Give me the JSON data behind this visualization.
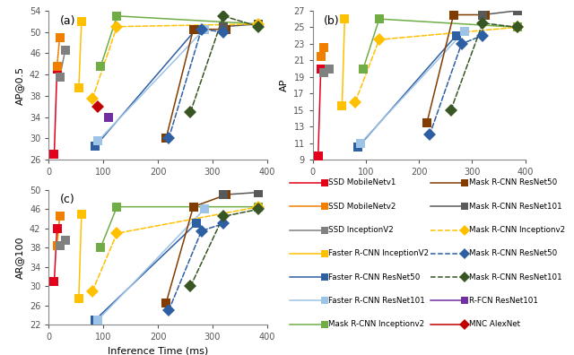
{
  "series": [
    {
      "name": "SSD MobileNetv1",
      "color": "#e2001a",
      "ls": "-",
      "mk": "s",
      "times": [
        10,
        15
      ],
      "ap05": [
        27,
        43
      ],
      "ap": [
        9.5,
        20
      ],
      "ar100": [
        31,
        42
      ]
    },
    {
      "name": "SSD MobileNetv2",
      "color": "#f07f00",
      "ls": "-",
      "mk": "s",
      "times": [
        15,
        20
      ],
      "ap05": [
        43.5,
        49
      ],
      "ap": [
        21.5,
        22.5
      ],
      "ar100": [
        38.5,
        44.5
      ]
    },
    {
      "name": "SSD InceptionV2",
      "color": "#808080",
      "ls": "-",
      "mk": "s",
      "times": [
        20,
        30
      ],
      "ap05": [
        41.5,
        46.5
      ],
      "ap": [
        19.5,
        20.0
      ],
      "ar100": [
        38.5,
        39.5
      ]
    },
    {
      "name": "Faster R-CNN InceptionV2",
      "color": "#ffc000",
      "ls": "-",
      "mk": "s",
      "times": [
        55,
        60
      ],
      "ap05": [
        39.5,
        52.0
      ],
      "ap": [
        15.5,
        26.0
      ],
      "ar100": [
        27.5,
        45.0
      ]
    },
    {
      "name": "Faster R-CNN ResNet50",
      "color": "#2e5fa3",
      "ls": "-",
      "mk": "s",
      "times": [
        85,
        270
      ],
      "ap05": [
        28.5,
        50.5
      ],
      "ap": [
        10.5,
        24.0
      ],
      "ar100": [
        23.0,
        43.0
      ]
    },
    {
      "name": "Faster R-CNN ResNet101",
      "color": "#9dc3e6",
      "ls": "-",
      "mk": "s",
      "times": [
        90,
        285
      ],
      "ap05": [
        29.5,
        50.5
      ],
      "ap": [
        11.0,
        24.5
      ],
      "ar100": [
        23.0,
        46.0
      ]
    },
    {
      "name": "Mask R-CNN Inceptionv2",
      "color": "#70ad47",
      "ls": "-",
      "mk": "s",
      "times": [
        95,
        125,
        385
      ],
      "ap05": [
        43.5,
        53.0,
        51.5
      ],
      "ap": [
        20.0,
        26.0,
        25.0
      ],
      "ar100": [
        38.0,
        46.5,
        46.5
      ]
    },
    {
      "name": "Mask R-CNN ResNet50",
      "color": "#833c00",
      "ls": "-",
      "mk": "s",
      "times": [
        215,
        265,
        325
      ],
      "ap05": [
        30.0,
        50.5,
        50.5
      ],
      "ap": [
        13.5,
        26.5,
        26.5
      ],
      "ar100": [
        26.5,
        46.5,
        49.0
      ]
    },
    {
      "name": "Mask R-CNN ResNet101",
      "color": "#595959",
      "ls": "-",
      "mk": "s",
      "times": [
        320,
        385
      ],
      "ap05": [
        51.0,
        51.5
      ],
      "ap": [
        26.5,
        27.0
      ],
      "ar100": [
        49.0,
        49.5
      ]
    },
    {
      "name": "Mask R-CNN Inceptionv2_d",
      "color": "#ffc000",
      "ls": "--",
      "mk": "D",
      "times": [
        80,
        125,
        385
      ],
      "ap05": [
        37.5,
        51.0,
        51.5
      ],
      "ap": [
        16.0,
        23.5,
        25.0
      ],
      "ar100": [
        29.0,
        41.0,
        46.5
      ]
    },
    {
      "name": "Mask R-CNN ResNet50_d",
      "color": "#2e5fa3",
      "ls": "--",
      "mk": "D",
      "times": [
        220,
        280,
        320
      ],
      "ap05": [
        30.0,
        50.5,
        50.0
      ],
      "ap": [
        12.0,
        23.0,
        24.0
      ],
      "ar100": [
        25.0,
        41.5,
        43.0
      ]
    },
    {
      "name": "Mask R-CNN ResNet101_d",
      "color": "#375623",
      "ls": "--",
      "mk": "D",
      "times": [
        260,
        320,
        385
      ],
      "ap05": [
        35.0,
        53.0,
        51.0
      ],
      "ap": [
        15.0,
        25.5,
        25.0
      ],
      "ar100": [
        30.0,
        44.5,
        46.0
      ]
    },
    {
      "name": "R-FCN ResNet101",
      "color": "#7030a0",
      "ls": "-",
      "mk": "s",
      "times": [
        110
      ],
      "ap05": [
        34.0
      ],
      "ap": [
        null
      ],
      "ar100": [
        null
      ]
    },
    {
      "name": "MNC AlexNet",
      "color": "#c00000",
      "ls": "-",
      "mk": "D",
      "times": [
        90
      ],
      "ap05": [
        36.0
      ],
      "ap": [
        null
      ],
      "ar100": [
        null
      ]
    }
  ],
  "legend": [
    {
      "name": "SSD MobileNetv1",
      "color": "#e2001a",
      "ls": "-",
      "mk": "s"
    },
    {
      "name": "SSD MobileNetv2",
      "color": "#f07f00",
      "ls": "-",
      "mk": "s"
    },
    {
      "name": "SSD InceptionV2",
      "color": "#808080",
      "ls": "-",
      "mk": "s"
    },
    {
      "name": "Faster R-CNN InceptionV2",
      "color": "#ffc000",
      "ls": "-",
      "mk": "s"
    },
    {
      "name": "Faster R-CNN ResNet50",
      "color": "#2e5fa3",
      "ls": "-",
      "mk": "s"
    },
    {
      "name": "Faster R-CNN ResNet101",
      "color": "#9dc3e6",
      "ls": "-",
      "mk": "s"
    },
    {
      "name": "Mask R-CNN Inceptionv2",
      "color": "#70ad47",
      "ls": "-",
      "mk": "s"
    },
    {
      "name": "Mask R-CNN ResNet50",
      "color": "#833c00",
      "ls": "-",
      "mk": "s"
    },
    {
      "name": "Mask R-CNN ResNet101",
      "color": "#595959",
      "ls": "-",
      "mk": "s"
    },
    {
      "name": "Mask R-CNN Inceptionv2",
      "color": "#ffc000",
      "ls": "--",
      "mk": "D"
    },
    {
      "name": "Mask R-CNN ResNet50",
      "color": "#2e5fa3",
      "ls": "--",
      "mk": "D"
    },
    {
      "name": "Mask R-CNN ResNet101",
      "color": "#375623",
      "ls": "--",
      "mk": "D"
    },
    {
      "name": "R-FCN ResNet101",
      "color": "#7030a0",
      "ls": "-",
      "mk": "s"
    },
    {
      "name": "MNC AlexNet",
      "color": "#c00000",
      "ls": "-",
      "mk": "D"
    }
  ],
  "xlim": [
    0,
    400
  ],
  "ap05_ylim": [
    26,
    54
  ],
  "ap_ylim": [
    9,
    27
  ],
  "ar100_ylim": [
    22,
    50
  ],
  "ap05_yticks": [
    26,
    30,
    34,
    38,
    42,
    46,
    50,
    54
  ],
  "ap_yticks": [
    9,
    11,
    13,
    15,
    17,
    19,
    21,
    23,
    25,
    27
  ],
  "ar100_yticks": [
    22,
    26,
    30,
    34,
    38,
    42,
    46,
    50
  ],
  "xticks": [
    0,
    100,
    200,
    300,
    400
  ],
  "xlabel": "Inference Time (ms)",
  "ylabel_a": "AP@0.5",
  "ylabel_b": "AP",
  "ylabel_c": "AR@100",
  "labels": [
    "(a)",
    "(b)",
    "(c)"
  ]
}
